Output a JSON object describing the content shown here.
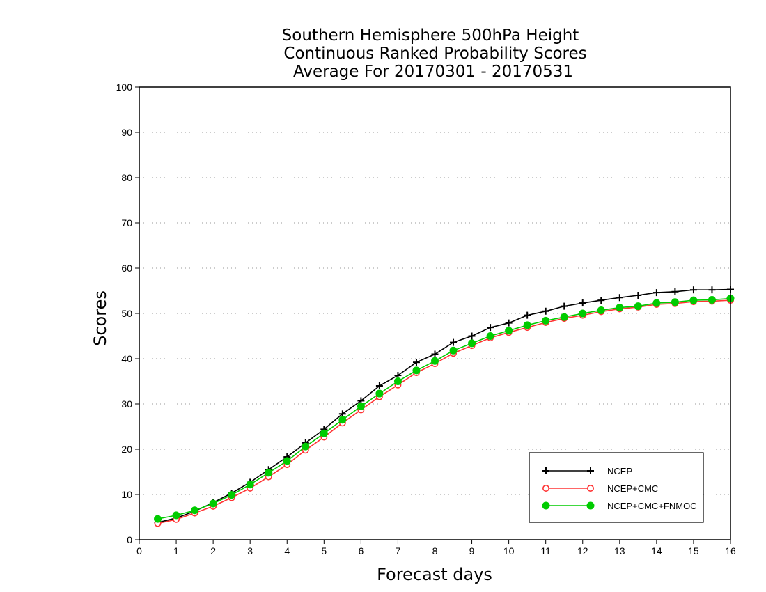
{
  "chart_data": {
    "type": "line",
    "title_lines": [
      "Southern Hemisphere 500hPa Height",
      "Continuous Ranked Probability Scores",
      "Average For 20170301 - 20170531"
    ],
    "xlabel": "Forecast days",
    "ylabel": "Scores",
    "xlim": [
      0,
      16
    ],
    "ylim": [
      0,
      100
    ],
    "xticks": [
      0,
      1,
      2,
      3,
      4,
      5,
      6,
      7,
      8,
      9,
      10,
      11,
      12,
      13,
      14,
      15,
      16
    ],
    "yticks": [
      0,
      10,
      20,
      30,
      40,
      50,
      60,
      70,
      80,
      90,
      100
    ],
    "grid": "horizontal dotted",
    "legend_position": "bottom-right",
    "x": [
      0.5,
      1,
      1.5,
      2,
      2.5,
      3,
      3.5,
      4,
      4.5,
      5,
      5.5,
      6,
      6.5,
      7,
      7.5,
      8,
      8.5,
      9,
      9.5,
      10,
      10.5,
      11,
      11.5,
      12,
      12.5,
      13,
      13.5,
      14,
      14.5,
      15,
      15.5,
      16
    ],
    "series": [
      {
        "name": "NCEP",
        "color": "#000000",
        "marker": "plus",
        "values": [
          3.8,
          4.8,
          6.3,
          8.2,
          10.3,
          12.7,
          15.5,
          18.3,
          21.4,
          24.4,
          27.8,
          30.7,
          34.0,
          36.3,
          39.2,
          41.0,
          43.6,
          45.0,
          46.9,
          47.9,
          49.6,
          50.5,
          51.6,
          52.3,
          52.9,
          53.5,
          54.0,
          54.6,
          54.8,
          55.2,
          55.2,
          55.3
        ]
      },
      {
        "name": "NCEP+CMC",
        "color": "#ff3333",
        "marker": "circle-open",
        "values": [
          3.6,
          4.5,
          5.9,
          7.4,
          9.3,
          11.4,
          13.9,
          16.6,
          19.8,
          22.7,
          25.8,
          28.7,
          31.6,
          34.2,
          36.9,
          38.9,
          41.2,
          42.9,
          44.6,
          45.8,
          46.9,
          48.0,
          48.9,
          49.6,
          50.4,
          51.0,
          51.4,
          52.0,
          52.2,
          52.6,
          52.7,
          52.9
        ]
      },
      {
        "name": "NCEP+CMC+FNMOC",
        "color": "#00cc00",
        "marker": "circle-filled",
        "values": [
          4.6,
          5.4,
          6.5,
          8.0,
          9.9,
          12.2,
          14.8,
          17.4,
          20.6,
          23.5,
          26.5,
          29.5,
          32.3,
          35.0,
          37.4,
          39.5,
          41.8,
          43.4,
          45.0,
          46.2,
          47.4,
          48.4,
          49.2,
          50.0,
          50.7,
          51.3,
          51.6,
          52.3,
          52.5,
          52.9,
          53.0,
          53.3
        ]
      }
    ]
  }
}
